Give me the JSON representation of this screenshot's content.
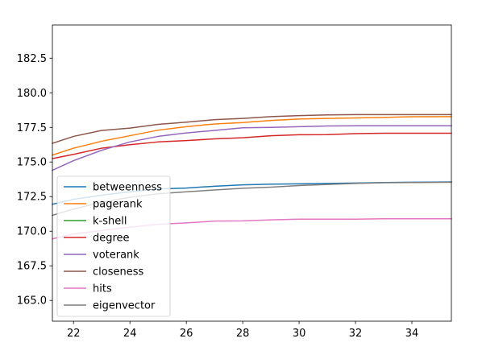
{
  "chart_data": {
    "type": "line",
    "title": "",
    "xlabel": "",
    "ylabel": "",
    "xlim": [
      21.25,
      35.4
    ],
    "ylim": [
      163.5,
      184.9
    ],
    "xticks": [
      22,
      24,
      26,
      28,
      30,
      32,
      34
    ],
    "yticks": [
      165.0,
      167.5,
      170.0,
      172.5,
      175.0,
      177.5,
      180.0,
      182.5
    ],
    "ytick_labels": [
      "165.0",
      "167.5",
      "170.0",
      "172.5",
      "175.0",
      "177.5",
      "180.0",
      "182.5"
    ],
    "grid": false,
    "legend_position": "lower-left",
    "series": [
      {
        "name": "betweenness",
        "color": "#1f77b4",
        "x": [
          21.25,
          22,
          23,
          24,
          25,
          26,
          27,
          28,
          29,
          30,
          31,
          32,
          33,
          34,
          35.4
        ],
        "y": [
          171.95,
          172.3,
          172.6,
          172.85,
          173.05,
          173.12,
          173.25,
          173.35,
          173.4,
          173.42,
          173.45,
          173.48,
          173.52,
          173.54,
          173.56
        ]
      },
      {
        "name": "pagerank",
        "color": "#ff7f0e",
        "x": [
          21.25,
          22,
          23,
          24,
          25,
          26,
          27,
          28,
          29,
          30,
          31,
          32,
          33,
          34,
          35.4
        ],
        "y": [
          175.5,
          176.0,
          176.5,
          176.9,
          177.3,
          177.55,
          177.75,
          177.85,
          178.0,
          178.1,
          178.15,
          178.18,
          178.22,
          178.27,
          178.28
        ]
      },
      {
        "name": "k-shell",
        "color": "#2ca02c",
        "x": [],
        "y": []
      },
      {
        "name": "degree",
        "color": "#d62728",
        "x": [
          21.25,
          22,
          23,
          24,
          25,
          26,
          27,
          28,
          29,
          30,
          31,
          32,
          33,
          34,
          35.4
        ],
        "y": [
          175.25,
          175.55,
          176.0,
          176.25,
          176.45,
          176.55,
          176.67,
          176.75,
          176.9,
          176.97,
          176.98,
          177.05,
          177.08,
          177.08,
          177.08
        ]
      },
      {
        "name": "voterank",
        "color": "#9467bd",
        "x": [
          21.25,
          22,
          23,
          24,
          25,
          26,
          27,
          28,
          29,
          30,
          31,
          32,
          33,
          34,
          35.4
        ],
        "y": [
          174.4,
          175.1,
          175.85,
          176.45,
          176.85,
          177.1,
          177.28,
          177.47,
          177.5,
          177.55,
          177.6,
          177.62,
          177.62,
          177.62,
          177.62
        ]
      },
      {
        "name": "closeness",
        "color": "#8c564b",
        "x": [
          21.25,
          22,
          23,
          24,
          25,
          26,
          27,
          28,
          29,
          30,
          31,
          32,
          33,
          34,
          35.4
        ],
        "y": [
          176.35,
          176.85,
          177.28,
          177.45,
          177.72,
          177.88,
          178.06,
          178.15,
          178.28,
          178.35,
          178.4,
          178.42,
          178.42,
          178.42,
          178.42
        ]
      },
      {
        "name": "hits",
        "color": "#e377c2",
        "x": [
          21.25,
          22,
          23,
          24,
          25,
          26,
          27,
          28,
          29,
          30,
          31,
          32,
          33,
          34,
          35.4
        ],
        "y": [
          169.45,
          169.8,
          170.05,
          170.3,
          170.5,
          170.6,
          170.73,
          170.75,
          170.82,
          170.87,
          170.87,
          170.87,
          170.9,
          170.9,
          170.9
        ]
      },
      {
        "name": "eigenvector",
        "color": "#7f7f7f",
        "x": [
          21.25,
          22,
          23,
          24,
          25,
          26,
          27,
          28,
          29,
          30,
          31,
          32,
          33,
          34,
          35.4
        ],
        "y": [
          171.15,
          171.6,
          172.1,
          172.45,
          172.7,
          172.85,
          172.98,
          173.1,
          173.18,
          173.3,
          173.38,
          173.45,
          173.5,
          173.52,
          173.54
        ]
      }
    ]
  }
}
